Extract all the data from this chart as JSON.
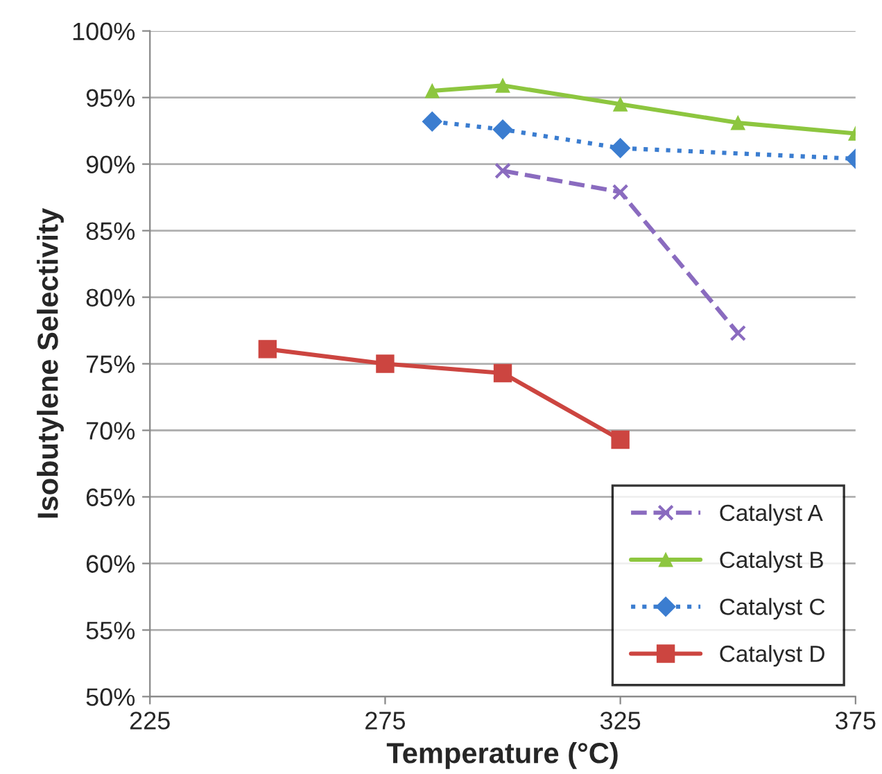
{
  "chart_data": {
    "type": "line",
    "xlabel": "Temperature (°C)",
    "ylabel": "Isobutylene Selectivity",
    "xlim": [
      225,
      375
    ],
    "xticks": [
      225,
      275,
      325,
      375
    ],
    "ylim": [
      50,
      100
    ],
    "yticks": [
      {
        "value": 50,
        "label": "50%"
      },
      {
        "value": 55,
        "label": "55%"
      },
      {
        "value": 60,
        "label": "60%"
      },
      {
        "value": 65,
        "label": "65%"
      },
      {
        "value": 70,
        "label": "70%"
      },
      {
        "value": 75,
        "label": "75%"
      },
      {
        "value": 80,
        "label": "80%"
      },
      {
        "value": 85,
        "label": "85%"
      },
      {
        "value": 90,
        "label": "90%"
      },
      {
        "value": 95,
        "label": "95%"
      },
      {
        "value": 100,
        "label": "100%"
      }
    ],
    "grid": "y",
    "legend": "bottom right",
    "series": [
      {
        "name": "Catalyst A",
        "color": "#8a6bbf",
        "marker": "cross",
        "line_style": "dashed",
        "x": [
          300,
          325,
          350
        ],
        "values": [
          89.5,
          87.9,
          77.3
        ]
      },
      {
        "name": "Catalyst B",
        "color": "#8dc63f",
        "marker": "triangle",
        "line_style": "solid",
        "x": [
          285,
          300,
          325,
          350,
          375
        ],
        "values": [
          95.5,
          95.9,
          94.5,
          93.1,
          92.3
        ]
      },
      {
        "name": "Catalyst C",
        "color": "#3b7dd0",
        "marker": "diamond",
        "line_style": "dotted",
        "x": [
          285,
          300,
          325,
          375
        ],
        "values": [
          93.2,
          92.6,
          91.2,
          90.4
        ]
      },
      {
        "name": "Catalyst D",
        "color": "#cc4540",
        "marker": "square",
        "line_style": "solid",
        "x": [
          250,
          275,
          300,
          325
        ],
        "values": [
          76.1,
          75.0,
          74.3,
          69.3
        ]
      }
    ]
  }
}
